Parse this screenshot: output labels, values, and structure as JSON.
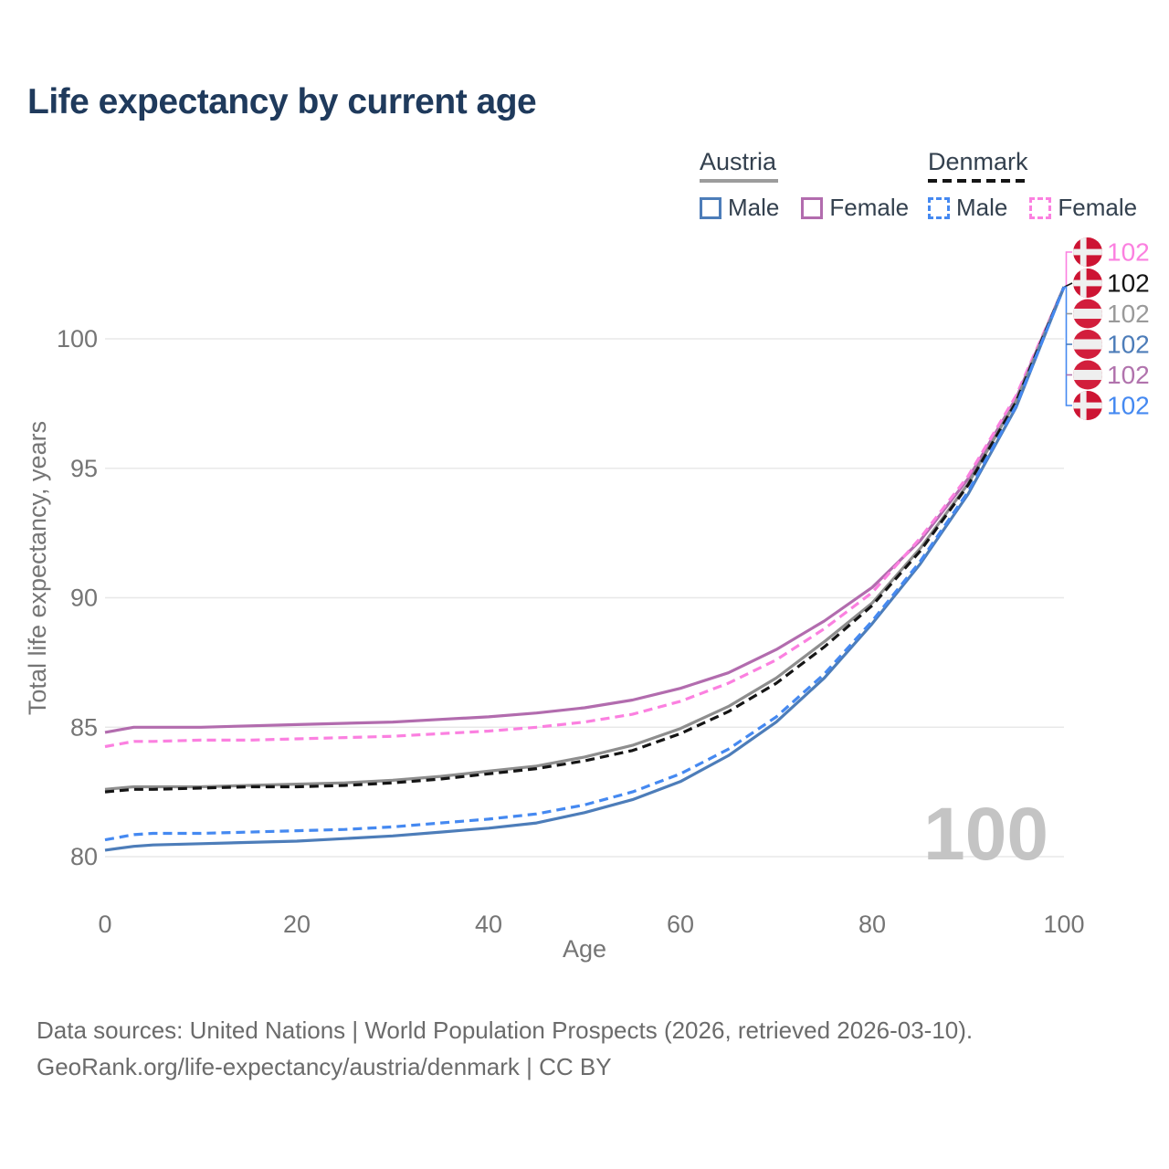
{
  "title": "Life expectancy by current age",
  "legend": {
    "groups": [
      {
        "label": "Austria",
        "underline_style": "solid",
        "underline_color": "#9c9c9c",
        "items": [
          {
            "label": "Male",
            "color": "#4d7db9",
            "dash": false
          },
          {
            "label": "Female",
            "color": "#b26cae",
            "dash": false
          }
        ]
      },
      {
        "label": "Denmark",
        "underline_style": "dashed",
        "underline_color": "#151515",
        "items": [
          {
            "label": "Male",
            "color": "#4589f1",
            "dash": true
          },
          {
            "label": "Female",
            "color": "#fb80e0",
            "dash": true
          }
        ]
      }
    ]
  },
  "chart_data": {
    "type": "line",
    "title": "Life expectancy by current age",
    "xlabel": "Age",
    "ylabel": "Total life expectancy, years",
    "xlim": [
      0,
      100
    ],
    "ylim": [
      78.5,
      103.5
    ],
    "x_ticks": [
      0,
      20,
      40,
      60,
      80,
      100
    ],
    "y_ticks": [
      80,
      85,
      90,
      95,
      100
    ],
    "grid": "horizontal-only",
    "legend_position": "top-right",
    "watermark": "100",
    "ages": [
      0,
      3,
      5,
      10,
      15,
      20,
      25,
      30,
      35,
      40,
      45,
      50,
      55,
      60,
      65,
      70,
      75,
      80,
      85,
      90,
      95,
      100
    ],
    "series": [
      {
        "name": "Austria Female",
        "country": "austria",
        "sex": "female",
        "style": "solid",
        "color": "#b26cae",
        "values": [
          84.8,
          85.0,
          85.0,
          85.0,
          85.05,
          85.1,
          85.15,
          85.2,
          85.3,
          85.4,
          85.55,
          85.75,
          86.05,
          86.5,
          87.1,
          88.0,
          89.1,
          90.4,
          92.2,
          94.6,
          97.7,
          102.0
        ]
      },
      {
        "name": "Denmark Female",
        "country": "denmark",
        "sex": "female",
        "style": "dashed",
        "color": "#fb80e0",
        "values": [
          84.25,
          84.45,
          84.45,
          84.5,
          84.5,
          84.55,
          84.6,
          84.65,
          84.75,
          84.85,
          85.0,
          85.2,
          85.5,
          86.0,
          86.7,
          87.6,
          88.8,
          90.2,
          92.3,
          94.7,
          97.8,
          102.0
        ]
      },
      {
        "name": "Austria",
        "country": "austria",
        "sex": "total",
        "style": "solid",
        "color": "#8e8e8e",
        "values": [
          82.6,
          82.7,
          82.7,
          82.7,
          82.75,
          82.8,
          82.85,
          82.95,
          83.1,
          83.3,
          83.5,
          83.85,
          84.3,
          84.95,
          85.8,
          86.9,
          88.3,
          89.8,
          91.9,
          94.4,
          97.6,
          102.0
        ]
      },
      {
        "name": "Denmark",
        "country": "denmark",
        "sex": "total",
        "style": "dashed",
        "color": "#151515",
        "values": [
          82.5,
          82.6,
          82.6,
          82.65,
          82.7,
          82.7,
          82.75,
          82.85,
          83.0,
          83.2,
          83.4,
          83.7,
          84.1,
          84.75,
          85.6,
          86.7,
          88.1,
          89.7,
          91.8,
          94.35,
          97.55,
          102.0
        ]
      },
      {
        "name": "Austria Male",
        "country": "austria",
        "sex": "male",
        "style": "solid",
        "color": "#4d7db9",
        "values": [
          80.25,
          80.4,
          80.45,
          80.5,
          80.55,
          80.6,
          80.7,
          80.8,
          80.95,
          81.1,
          81.3,
          81.7,
          82.2,
          82.9,
          83.9,
          85.2,
          86.9,
          89.0,
          91.3,
          94.0,
          97.35,
          102.0
        ]
      },
      {
        "name": "Denmark Male",
        "country": "denmark",
        "sex": "male",
        "style": "dashed",
        "color": "#4589f1",
        "values": [
          80.65,
          80.85,
          80.9,
          80.9,
          80.95,
          81.0,
          81.05,
          81.15,
          81.3,
          81.45,
          81.65,
          82.0,
          82.5,
          83.2,
          84.15,
          85.4,
          87.05,
          89.1,
          91.4,
          94.1,
          97.4,
          102.0
        ]
      }
    ],
    "end_labels": [
      {
        "value": "102",
        "series": "Denmark Female",
        "flag": "denmark",
        "color": "#fb80e0"
      },
      {
        "value": "102",
        "series": "Denmark",
        "flag": "denmark",
        "color": "#151515"
      },
      {
        "value": "102",
        "series": "Austria",
        "flag": "austria",
        "color": "#9a9a9a"
      },
      {
        "value": "102",
        "series": "Austria Male",
        "flag": "austria",
        "color": "#4d7db9"
      },
      {
        "value": "102",
        "series": "Austria Female",
        "flag": "austria",
        "color": "#b173ad"
      },
      {
        "value": "102",
        "series": "Denmark Male",
        "flag": "denmark",
        "color": "#4589f1"
      }
    ],
    "flag_colors": {
      "denmark_red": "#cd1433",
      "austria_red": "#d21e3c",
      "flag_white": "#efefef"
    },
    "style_colors": {
      "grid": "#e8e8e8",
      "axis_text": "#757575",
      "watermark": "#c4c4c4"
    }
  },
  "footer": {
    "line1": "Data sources: United Nations | World Population Prospects (2026, retrieved 2026-03-10).",
    "line2": "GeoRank.org/life-expectancy/austria/denmark | CC BY"
  }
}
